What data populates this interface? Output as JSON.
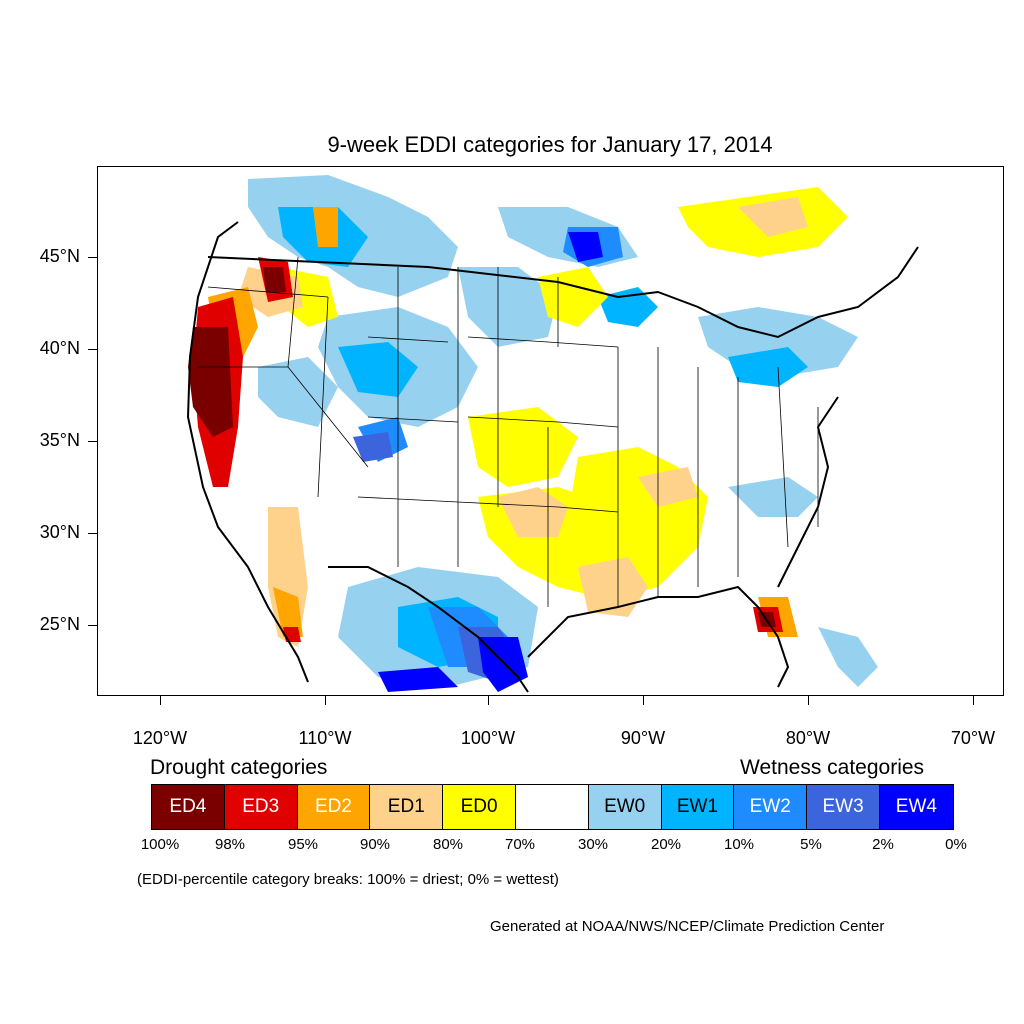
{
  "title": "9-week EDDI categories for January 17, 2014",
  "map": {
    "latitude_labels": [
      "45°N",
      "40°N",
      "35°N",
      "30°N",
      "25°N"
    ],
    "longitude_labels": [
      "120°W",
      "110°W",
      "100°W",
      "90°W",
      "80°W",
      "70°W"
    ]
  },
  "legend": {
    "drought_heading": "Drought categories",
    "wetness_heading": "Wetness categories",
    "categories": [
      {
        "label": "ED4",
        "color": "#7a0000",
        "text_color": "#ffffff"
      },
      {
        "label": "ED3",
        "color": "#e00000",
        "text_color": "#ffffff"
      },
      {
        "label": "ED2",
        "color": "#ffa500",
        "text_color": "#ffffff"
      },
      {
        "label": "ED1",
        "color": "#ffd28c",
        "text_color": "#000000"
      },
      {
        "label": "ED0",
        "color": "#ffff00",
        "text_color": "#000000"
      },
      {
        "label": "",
        "color": "#ffffff",
        "text_color": "#000000"
      },
      {
        "label": "EW0",
        "color": "#96d2f0",
        "text_color": "#000000"
      },
      {
        "label": "EW1",
        "color": "#00b4ff",
        "text_color": "#000000"
      },
      {
        "label": "EW2",
        "color": "#1e8cff",
        "text_color": "#ffffff"
      },
      {
        "label": "EW3",
        "color": "#3c64dc",
        "text_color": "#ffffff"
      },
      {
        "label": "EW4",
        "color": "#0000ff",
        "text_color": "#ffffff"
      }
    ],
    "percent_breaks": [
      "100%",
      "98%",
      "95%",
      "90%",
      "80%",
      "70%",
      "30%",
      "20%",
      "10%",
      "5%",
      "2%",
      "0%"
    ]
  },
  "breaks_note": "(EDDI-percentile category breaks: 100% = driest; 0% = wettest)",
  "credit": "Generated at NOAA/NWS/NCEP/Climate Prediction Center"
}
